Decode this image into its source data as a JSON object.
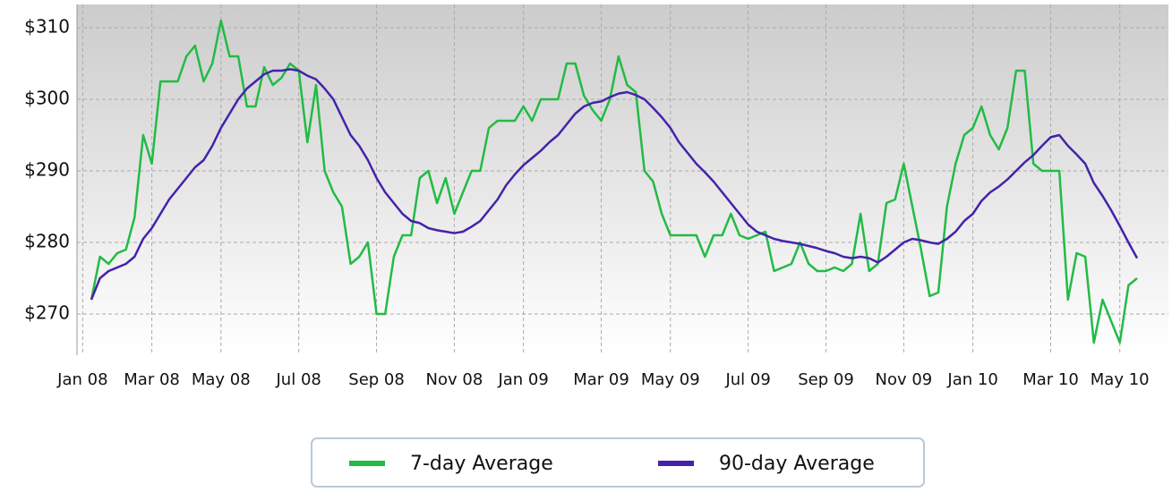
{
  "chart_data": {
    "type": "line",
    "categories": [
      "Jan 08",
      null,
      null,
      null,
      null,
      null,
      null,
      null,
      "Mar 08",
      null,
      null,
      null,
      null,
      null,
      null,
      null,
      "May 08",
      null,
      null,
      null,
      null,
      null,
      null,
      null,
      null,
      "Jul 08",
      null,
      null,
      null,
      null,
      null,
      null,
      null,
      null,
      "Sep 08",
      null,
      null,
      null,
      null,
      null,
      null,
      null,
      null,
      "Nov 08",
      null,
      null,
      null,
      null,
      null,
      null,
      null,
      "Jan 09",
      null,
      null,
      null,
      null,
      null,
      null,
      null,
      null,
      "Mar 09",
      null,
      null,
      null,
      null,
      null,
      null,
      null,
      "May 09",
      null,
      null,
      null,
      null,
      null,
      null,
      null,
      null,
      "Jul 09",
      null,
      null,
      null,
      null,
      null,
      null,
      null,
      null,
      "Sep 09",
      null,
      null,
      null,
      null,
      null,
      null,
      null,
      null,
      "Nov 09",
      null,
      null,
      null,
      null,
      null,
      null,
      null,
      "Jan 10",
      null,
      null,
      null,
      null,
      null,
      null,
      null,
      null,
      "Mar 10",
      null,
      null,
      null,
      null,
      null,
      null,
      null,
      "May 10",
      null,
      null
    ],
    "series": [
      {
        "name": "7-day Average",
        "color": "#22bb44",
        "values": [
          null,
          272,
          278,
          277,
          278.5,
          279,
          283.5,
          295,
          291,
          302.5,
          302.5,
          302.5,
          306,
          307.5,
          302.5,
          305,
          311,
          306,
          306,
          299,
          299,
          304.5,
          302,
          303,
          305,
          304,
          294,
          302,
          290,
          287,
          285,
          277,
          278,
          280,
          270,
          270,
          278,
          281,
          281,
          289,
          290,
          285.5,
          289,
          284,
          287,
          290,
          290,
          296,
          297,
          297,
          297,
          299,
          297,
          300,
          300,
          300,
          305,
          305,
          300.5,
          298.5,
          297,
          300,
          306,
          302,
          301,
          290,
          288.5,
          284,
          281,
          281,
          281,
          281,
          278,
          281,
          281,
          284,
          281,
          280.5,
          281,
          281.5,
          276,
          276.5,
          277,
          280,
          277,
          276,
          276,
          276.5,
          276,
          277,
          284,
          276,
          277,
          285.5,
          286,
          291,
          285,
          279,
          272.5,
          273,
          285,
          291,
          295,
          296,
          299,
          295,
          293,
          296,
          304,
          304,
          291,
          290,
          290,
          290,
          272,
          278.5,
          278,
          266,
          272,
          269,
          266,
          274,
          275
        ]
      },
      {
        "name": "90-day Average",
        "color": "#4422aa",
        "values": [
          null,
          272,
          275,
          276,
          276.5,
          277,
          278,
          280.5,
          282,
          284,
          286,
          287.5,
          289,
          290.5,
          291.5,
          293.5,
          296,
          298,
          300,
          301.5,
          302.5,
          303.5,
          304,
          304,
          304.2,
          304,
          303.3,
          302.8,
          301.5,
          300,
          297.5,
          295,
          293.5,
          291.5,
          289,
          287,
          285.5,
          284,
          283,
          282.7,
          282,
          281.7,
          281.5,
          281.3,
          281.5,
          282.2,
          283,
          284.5,
          286,
          288,
          289.5,
          290.8,
          291.8,
          292.8,
          294,
          295,
          296.5,
          298,
          299,
          299.5,
          299.7,
          300.3,
          300.8,
          301,
          300.6,
          300,
          298.8,
          297.5,
          296,
          294,
          292.5,
          291,
          289.8,
          288.5,
          287,
          285.5,
          284,
          282.5,
          281.5,
          281,
          280.5,
          280.2,
          280,
          279.8,
          279.5,
          279.2,
          278.8,
          278.5,
          278,
          277.8,
          278,
          277.8,
          277.2,
          278,
          279,
          280,
          280.5,
          280.3,
          280,
          279.8,
          280.5,
          281.5,
          283,
          284,
          285.8,
          287,
          287.8,
          288.8,
          290,
          291.2,
          292.2,
          293.5,
          294.7,
          295,
          293.5,
          292.3,
          291,
          288.3,
          286.5,
          284.5,
          282.3,
          280,
          277.8
        ]
      }
    ],
    "ylim": [
      264.25,
      313.25
    ],
    "yticks": [
      {
        "value": 270,
        "label": "$270"
      },
      {
        "value": 280,
        "label": "$280"
      },
      {
        "value": 290,
        "label": "$290"
      },
      {
        "value": 300,
        "label": "$300"
      },
      {
        "value": 310,
        "label": "$310"
      }
    ],
    "grid": true,
    "legend": "bottom"
  }
}
